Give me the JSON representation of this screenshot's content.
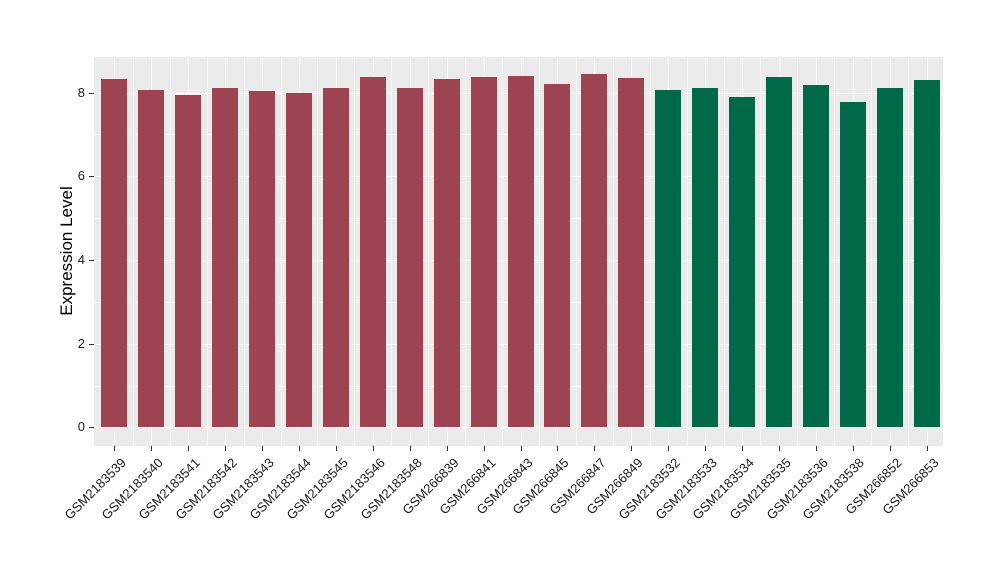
{
  "chart_data": {
    "type": "bar",
    "title": "",
    "xlabel": "",
    "ylabel": "Expression Level",
    "ylim": [
      0,
      8.85
    ],
    "yticks": [
      0,
      2,
      4,
      6,
      8
    ],
    "ytick_labels": [
      "0",
      "2",
      "4",
      "6",
      "8"
    ],
    "yticks_minor": [
      1,
      3,
      5,
      7
    ],
    "grid": "on",
    "legend": "none",
    "colors": {
      "group_a": "#9E4352",
      "group_b": "#006948"
    },
    "panel_background": "#EBEBEB",
    "grid_color": "#FFFFFF",
    "bars": [
      {
        "label": "GSM2183539",
        "value": 8.32,
        "color": "#9E4352"
      },
      {
        "label": "GSM2183540",
        "value": 8.06,
        "color": "#9E4352"
      },
      {
        "label": "GSM2183541",
        "value": 7.94,
        "color": "#9E4352"
      },
      {
        "label": "GSM2183542",
        "value": 8.12,
        "color": "#9E4352"
      },
      {
        "label": "GSM2183543",
        "value": 8.03,
        "color": "#9E4352"
      },
      {
        "label": "GSM2183544",
        "value": 7.98,
        "color": "#9E4352"
      },
      {
        "label": "GSM2183545",
        "value": 8.12,
        "color": "#9E4352"
      },
      {
        "label": "GSM2183546",
        "value": 8.38,
        "color": "#9E4352"
      },
      {
        "label": "GSM2183548",
        "value": 8.1,
        "color": "#9E4352"
      },
      {
        "label": "GSM266839",
        "value": 8.32,
        "color": "#9E4352"
      },
      {
        "label": "GSM266841",
        "value": 8.38,
        "color": "#9E4352"
      },
      {
        "label": "GSM266843",
        "value": 8.4,
        "color": "#9E4352"
      },
      {
        "label": "GSM266845",
        "value": 8.21,
        "color": "#9E4352"
      },
      {
        "label": "GSM266847",
        "value": 8.44,
        "color": "#9E4352"
      },
      {
        "label": "GSM266849",
        "value": 8.36,
        "color": "#9E4352"
      },
      {
        "label": "GSM2183532",
        "value": 8.05,
        "color": "#006948"
      },
      {
        "label": "GSM2183533",
        "value": 8.11,
        "color": "#006948"
      },
      {
        "label": "GSM2183534",
        "value": 7.89,
        "color": "#006948"
      },
      {
        "label": "GSM2183535",
        "value": 8.37,
        "color": "#006948"
      },
      {
        "label": "GSM2183536",
        "value": 8.17,
        "color": "#006948"
      },
      {
        "label": "GSM2183538",
        "value": 7.77,
        "color": "#006948"
      },
      {
        "label": "GSM266852",
        "value": 8.12,
        "color": "#006948"
      },
      {
        "label": "GSM266853",
        "value": 8.3,
        "color": "#006948"
      }
    ]
  }
}
